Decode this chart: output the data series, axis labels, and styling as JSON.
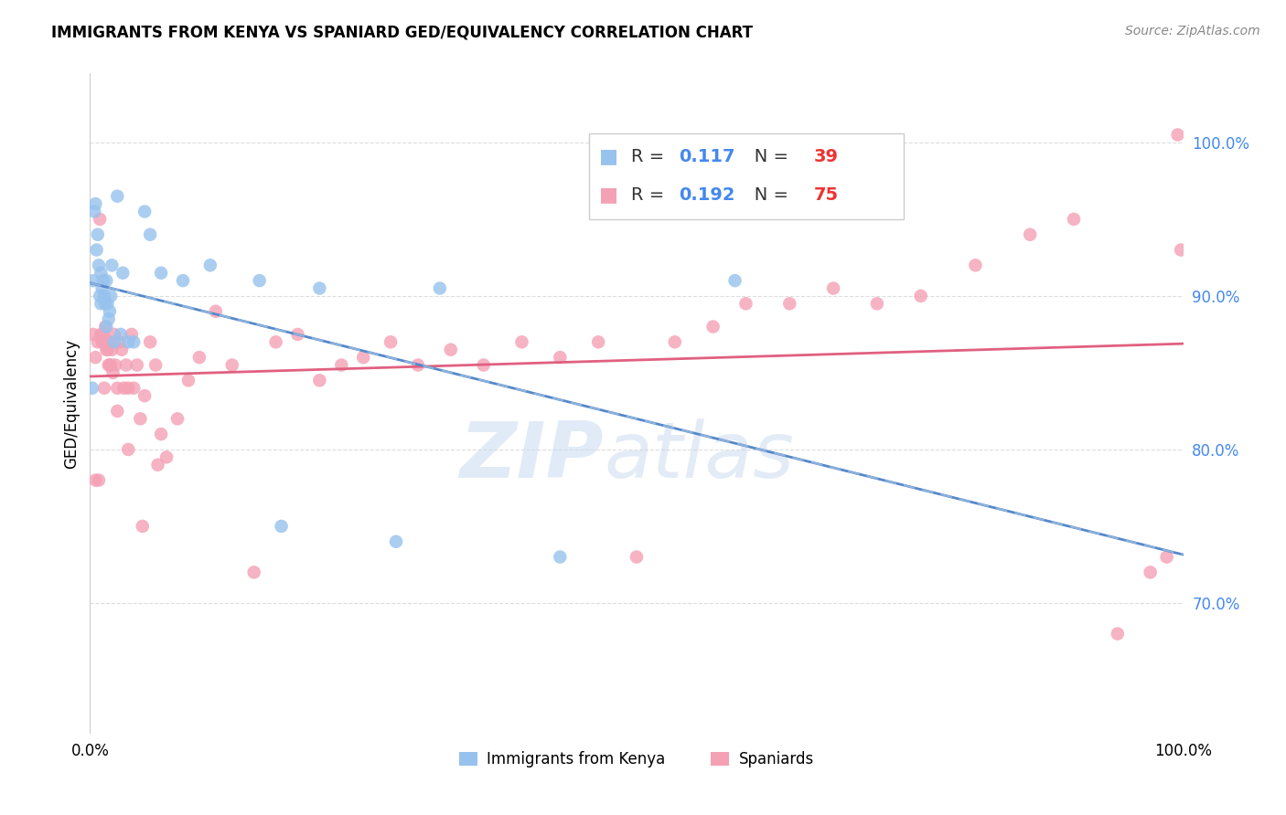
{
  "title": "IMMIGRANTS FROM KENYA VS SPANIARD GED/EQUIVALENCY CORRELATION CHART",
  "source": "Source: ZipAtlas.com",
  "ylabel": "GED/Equivalency",
  "r_kenya": 0.117,
  "n_kenya": 39,
  "r_spaniard": 0.192,
  "n_spaniard": 75,
  "legend_label1": "Immigrants from Kenya",
  "legend_label2": "Spaniards",
  "color_kenya": "#96C2ED",
  "color_spaniard": "#F4A0B5",
  "color_kenya_line": "#5588CC",
  "color_spaniard_line": "#E06080",
  "color_kenya_dashed": "#99BBDD",
  "xlim": [
    0.0,
    1.0
  ],
  "ylim": [
    0.615,
    1.045
  ],
  "yticks": [
    0.7,
    0.8,
    0.9,
    1.0
  ],
  "ytick_labels": [
    "70.0%",
    "80.0%",
    "90.0%",
    "100.0%"
  ],
  "watermark_zip": "ZIP",
  "watermark_atlas": "atlas",
  "background_color": "#ffffff",
  "grid_color": "#dddddd",
  "kenya_x": [
    0.002,
    0.003,
    0.004,
    0.005,
    0.006,
    0.007,
    0.008,
    0.009,
    0.01,
    0.01,
    0.011,
    0.012,
    0.013,
    0.014,
    0.015,
    0.015,
    0.016,
    0.017,
    0.018,
    0.019,
    0.02,
    0.022,
    0.025,
    0.028,
    0.03,
    0.035,
    0.04,
    0.05,
    0.055,
    0.065,
    0.085,
    0.11,
    0.155,
    0.175,
    0.21,
    0.28,
    0.32,
    0.43,
    0.59
  ],
  "kenya_y": [
    0.84,
    0.91,
    0.955,
    0.96,
    0.93,
    0.94,
    0.92,
    0.9,
    0.915,
    0.895,
    0.905,
    0.91,
    0.9,
    0.895,
    0.91,
    0.88,
    0.895,
    0.885,
    0.89,
    0.9,
    0.92,
    0.87,
    0.965,
    0.875,
    0.915,
    0.87,
    0.87,
    0.955,
    0.94,
    0.915,
    0.91,
    0.92,
    0.91,
    0.75,
    0.905,
    0.74,
    0.905,
    0.73,
    0.91
  ],
  "spaniard_x": [
    0.003,
    0.005,
    0.007,
    0.009,
    0.01,
    0.011,
    0.012,
    0.013,
    0.014,
    0.015,
    0.016,
    0.017,
    0.018,
    0.019,
    0.02,
    0.021,
    0.022,
    0.023,
    0.025,
    0.027,
    0.029,
    0.031,
    0.033,
    0.035,
    0.038,
    0.04,
    0.043,
    0.046,
    0.05,
    0.055,
    0.06,
    0.065,
    0.07,
    0.08,
    0.09,
    0.1,
    0.115,
    0.13,
    0.15,
    0.17,
    0.19,
    0.21,
    0.23,
    0.25,
    0.275,
    0.3,
    0.33,
    0.36,
    0.395,
    0.43,
    0.465,
    0.5,
    0.535,
    0.57,
    0.6,
    0.64,
    0.68,
    0.72,
    0.76,
    0.81,
    0.86,
    0.9,
    0.94,
    0.97,
    0.985,
    0.995,
    0.005,
    0.008,
    0.013,
    0.018,
    0.025,
    0.035,
    0.048,
    0.062,
    0.998
  ],
  "spaniard_y": [
    0.875,
    0.86,
    0.87,
    0.95,
    0.875,
    0.87,
    0.875,
    0.87,
    0.88,
    0.865,
    0.865,
    0.855,
    0.87,
    0.855,
    0.865,
    0.85,
    0.875,
    0.855,
    0.84,
    0.87,
    0.865,
    0.84,
    0.855,
    0.84,
    0.875,
    0.84,
    0.855,
    0.82,
    0.835,
    0.87,
    0.855,
    0.81,
    0.795,
    0.82,
    0.845,
    0.86,
    0.89,
    0.855,
    0.72,
    0.87,
    0.875,
    0.845,
    0.855,
    0.86,
    0.87,
    0.855,
    0.865,
    0.855,
    0.87,
    0.86,
    0.87,
    0.73,
    0.87,
    0.88,
    0.895,
    0.895,
    0.905,
    0.895,
    0.9,
    0.92,
    0.94,
    0.95,
    0.68,
    0.72,
    0.73,
    1.005,
    0.78,
    0.78,
    0.84,
    0.855,
    0.825,
    0.8,
    0.75,
    0.79,
    0.93
  ]
}
